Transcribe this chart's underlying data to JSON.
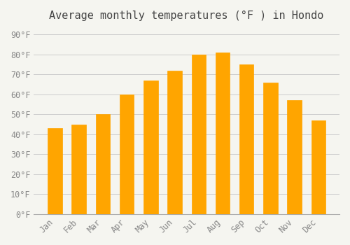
{
  "title": "Average monthly temperatures (°F ) in Hondo",
  "months": [
    "Jan",
    "Feb",
    "Mar",
    "Apr",
    "May",
    "Jun",
    "Jul",
    "Aug",
    "Sep",
    "Oct",
    "Nov",
    "Dec"
  ],
  "values": [
    43,
    45,
    50,
    60,
    67,
    72,
    80,
    81,
    75,
    66,
    57,
    47
  ],
  "bar_color": "#FFA500",
  "bar_edge_color": "#E08000",
  "background_color": "#F5F5F0",
  "ylim": [
    0,
    93
  ],
  "yticks": [
    0,
    10,
    20,
    30,
    40,
    50,
    60,
    70,
    80,
    90
  ],
  "ytick_labels": [
    "0°F",
    "10°F",
    "20°F",
    "30°F",
    "40°F",
    "50°F",
    "60°F",
    "70°F",
    "80°F",
    "90°F"
  ],
  "title_fontsize": 11,
  "tick_fontsize": 8.5,
  "grid_color": "#CCCCCC",
  "font_family": "monospace"
}
